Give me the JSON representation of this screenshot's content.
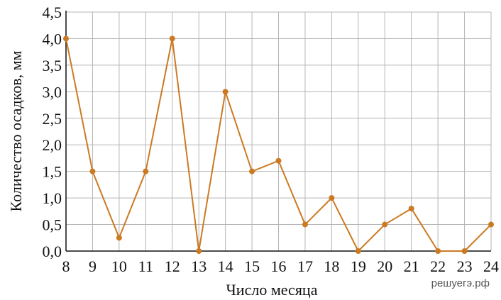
{
  "chart_data": {
    "type": "line",
    "title": "",
    "xlabel": "Число месяца",
    "ylabel": "Количество осадков, мм",
    "x": [
      8,
      9,
      10,
      11,
      12,
      13,
      14,
      15,
      16,
      17,
      18,
      19,
      20,
      21,
      22,
      23,
      24
    ],
    "series": [
      {
        "values": [
          4.0,
          1.5,
          0.25,
          1.5,
          4.0,
          0.0,
          3.0,
          1.5,
          1.7,
          0.5,
          1.0,
          0.0,
          0.5,
          0.8,
          0.0,
          0.0,
          0.5
        ]
      }
    ],
    "xlim": [
      8,
      24
    ],
    "ylim": [
      0,
      4.5
    ],
    "x_ticks": [
      "8",
      "9",
      "10",
      "11",
      "12",
      "13",
      "14",
      "15",
      "16",
      "17",
      "18",
      "19",
      "20",
      "21",
      "22",
      "23",
      "24"
    ],
    "y_ticks": [
      "0,0",
      "0,5",
      "1,0",
      "1,5",
      "2,0",
      "2,5",
      "3,0",
      "3,5",
      "4,0",
      "4,5"
    ],
    "grid": true,
    "line_color": "#cc7a22",
    "grid_color": "#b5b5b5"
  },
  "watermark": "решуегэ.рф"
}
